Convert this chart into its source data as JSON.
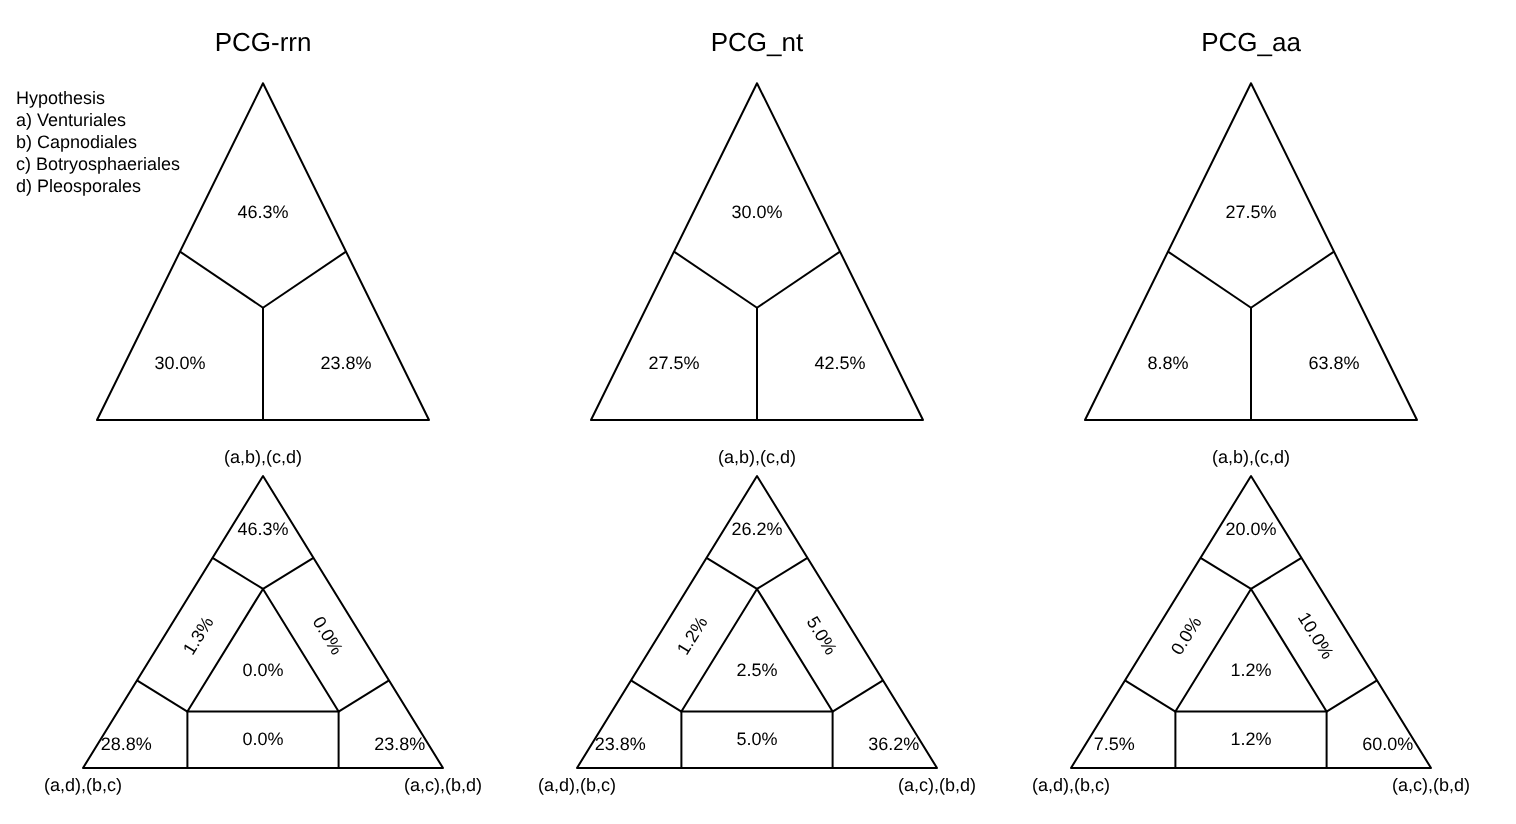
{
  "chart_data": [
    {
      "type": "other",
      "title": "PCG-rrn",
      "annotations": [
        "Hypothesis",
        "a) Venturiales",
        "b) Capnodiales",
        "c) Botryosphaeriales",
        "d) Pleosporales"
      ],
      "values": [
        46.3,
        30.0,
        23.8
      ],
      "value_labels": [
        "46.3%",
        "30.0%",
        "23.8%"
      ]
    },
    {
      "type": "other",
      "title": "PCG_nt",
      "values": [
        30.0,
        27.5,
        42.5
      ],
      "value_labels": [
        "30.0%",
        "27.5%",
        "42.5%"
      ]
    },
    {
      "type": "other",
      "title": "PCG_aa",
      "values": [
        27.5,
        8.8,
        63.8
      ],
      "value_labels": [
        "27.5%",
        "8.8%",
        "63.8%"
      ]
    },
    {
      "type": "other",
      "annotations": [
        "(a,b),(c,d)",
        "(a,d),(b,c)",
        "(a,c),(b,d)"
      ],
      "values": [
        46.3,
        1.3,
        0.0,
        0.0,
        28.8,
        0.0,
        23.8
      ],
      "value_labels": [
        "46.3%",
        "1.3%",
        "0.0%",
        "0.0%",
        "28.8%",
        "0.0%",
        "23.8%"
      ]
    },
    {
      "type": "other",
      "annotations": [
        "(a,b),(c,d)",
        "(a,d),(b,c)",
        "(a,c),(b,d)"
      ],
      "values": [
        26.2,
        1.2,
        5.0,
        2.5,
        23.8,
        5.0,
        36.2
      ],
      "value_labels": [
        "26.2%",
        "1.2%",
        "5.0%",
        "2.5%",
        "23.8%",
        "5.0%",
        "36.2%"
      ]
    },
    {
      "type": "other",
      "annotations": [
        "(a,b),(c,d)",
        "(a,d),(b,c)",
        "(a,c),(b,d)"
      ],
      "values": [
        20.0,
        0.0,
        10.0,
        1.2,
        7.5,
        1.2,
        60.0
      ],
      "value_labels": [
        "20.0%",
        "0.0%",
        "10.0%",
        "1.2%",
        "7.5%",
        "1.2%",
        "60.0%"
      ]
    }
  ]
}
